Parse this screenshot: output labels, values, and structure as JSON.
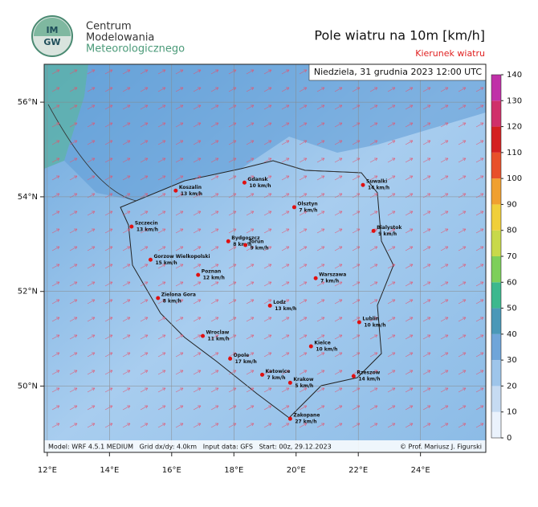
{
  "logo": {
    "badge": [
      "IM",
      "GW"
    ],
    "lines": [
      "Centrum",
      "Modelowania",
      "Meteorologicznego"
    ]
  },
  "title": "Pole wiatru na 10m [km/h]",
  "subtitle": "Kierunek wiatru",
  "date": "Niedziela, 31 grudnia 2023 12:00 UTC",
  "footer": {
    "left": "Model: WRF 4.5.1 MEDIUM   Grid dx/dy: 4.0km   Input data: GFS   Start: 00z, 29.12.2023",
    "right": "© Prof. Mariusz J. Figurski"
  },
  "map": {
    "xlim": [
      11.9,
      26.1
    ],
    "ylim": [
      48.6,
      56.8
    ],
    "xticks": [
      {
        "value": 12,
        "label": "12°E"
      },
      {
        "value": 14,
        "label": "14°E"
      },
      {
        "value": 16,
        "label": "16°E"
      },
      {
        "value": 18,
        "label": "18°E"
      },
      {
        "value": 20,
        "label": "20°E"
      },
      {
        "value": 22,
        "label": "22°E"
      },
      {
        "value": 24,
        "label": "24°E"
      }
    ],
    "yticks": [
      {
        "value": 50,
        "label": "50°N"
      },
      {
        "value": 52,
        "label": "52°N"
      },
      {
        "value": 54,
        "label": "54°N"
      },
      {
        "value": 56,
        "label": "56°N"
      }
    ],
    "cities": [
      {
        "name": "Koszalin",
        "lon": 16.13,
        "lat": 54.13,
        "value": 13,
        "value_label": "13 km/h"
      },
      {
        "name": "Gdansk",
        "lon": 18.34,
        "lat": 54.3,
        "value": 10,
        "value_label": "10 km/h"
      },
      {
        "name": "Suwalki",
        "lon": 22.15,
        "lat": 54.25,
        "value": 14,
        "value_label": "14 km/h"
      },
      {
        "name": "Olsztyn",
        "lon": 19.94,
        "lat": 53.78,
        "value": 7,
        "value_label": "7 km/h"
      },
      {
        "name": "Szczecin",
        "lon": 14.71,
        "lat": 53.37,
        "value": 13,
        "value_label": "13 km/h"
      },
      {
        "name": "Bialystok",
        "lon": 22.49,
        "lat": 53.28,
        "value": 9,
        "value_label": "9 km/h"
      },
      {
        "name": "Bydgoszcz",
        "lon": 17.82,
        "lat": 53.06,
        "value": 8,
        "value_label": "8 km/h"
      },
      {
        "name": "Torun",
        "lon": 18.37,
        "lat": 52.98,
        "value": 9,
        "value_label": "9 km/h"
      },
      {
        "name": "Gorzow Wielkopolski",
        "lon": 15.32,
        "lat": 52.67,
        "value": 15,
        "value_label": "15 km/h"
      },
      {
        "name": "Poznan",
        "lon": 16.85,
        "lat": 52.35,
        "value": 12,
        "value_label": "12 km/h"
      },
      {
        "name": "Warszawa",
        "lon": 20.63,
        "lat": 52.28,
        "value": 7,
        "value_label": "7 km/h"
      },
      {
        "name": "Zielona Gora",
        "lon": 15.56,
        "lat": 51.86,
        "value": 8,
        "value_label": "8 km/h"
      },
      {
        "name": "Lodz",
        "lon": 19.16,
        "lat": 51.7,
        "value": 13,
        "value_label": "13 km/h"
      },
      {
        "name": "Lublin",
        "lon": 22.03,
        "lat": 51.35,
        "value": 10,
        "value_label": "10 km/h"
      },
      {
        "name": "Wroclaw",
        "lon": 17.0,
        "lat": 51.06,
        "value": 11,
        "value_label": "11 km/h"
      },
      {
        "name": "Kielce",
        "lon": 20.48,
        "lat": 50.84,
        "value": 10,
        "value_label": "10 km/h"
      },
      {
        "name": "Opole",
        "lon": 17.88,
        "lat": 50.58,
        "value": 17,
        "value_label": "17 km/h"
      },
      {
        "name": "Katowice",
        "lon": 18.91,
        "lat": 50.24,
        "value": 7,
        "value_label": "7 km/h"
      },
      {
        "name": "Rzeszow",
        "lon": 21.85,
        "lat": 50.21,
        "value": 14,
        "value_label": "14 km/h"
      },
      {
        "name": "Krakow",
        "lon": 19.81,
        "lat": 50.07,
        "value": 5,
        "value_label": "5 km/h"
      },
      {
        "name": "Zakopane",
        "lon": 19.81,
        "lat": 49.31,
        "value": 27,
        "value_label": "27 km/h"
      }
    ]
  },
  "colorbar": {
    "ylim": [
      0,
      140
    ],
    "yticks": [
      0,
      10,
      20,
      30,
      40,
      50,
      60,
      70,
      80,
      90,
      100,
      110,
      120,
      130,
      140
    ],
    "colors": [
      "#eaf2fc",
      "#c6dbf2",
      "#9ec5ea",
      "#6fa5d9",
      "#4a98b8",
      "#3cb88e",
      "#7dcf5a",
      "#c8d94a",
      "#f0cf3a",
      "#f0a030",
      "#e8502a",
      "#d42020",
      "#d0306a",
      "#c030a8",
      "#a020c0"
    ]
  }
}
